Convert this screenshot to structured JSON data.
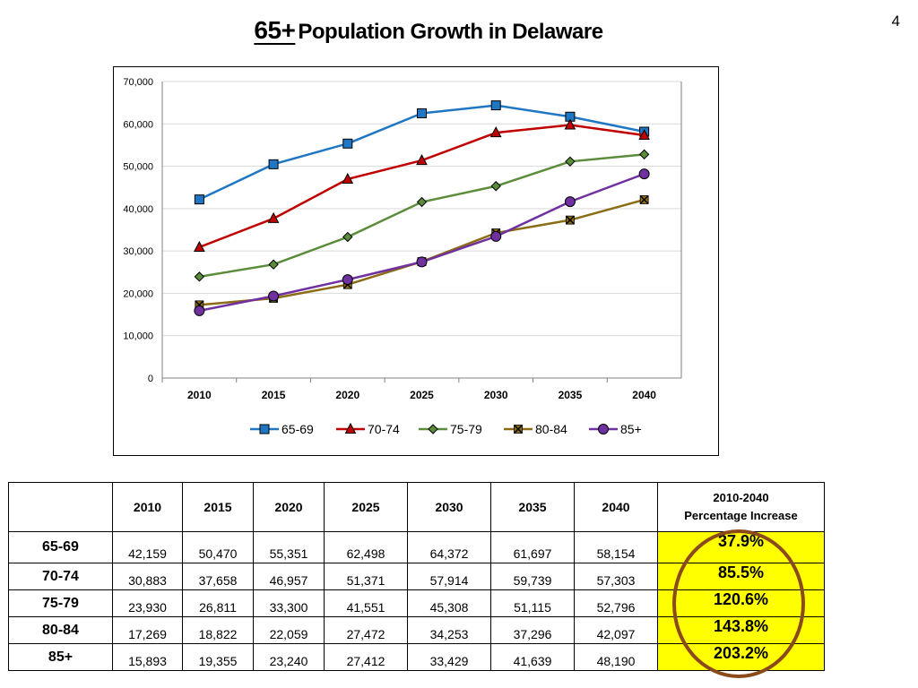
{
  "page_number": "4",
  "title": {
    "accent": "65+",
    "rest": "Population Growth in Delaware"
  },
  "chart_data": {
    "type": "line",
    "title": "",
    "xlabel": "",
    "ylabel": "",
    "x": [
      "2010",
      "2015",
      "2020",
      "2025",
      "2030",
      "2035",
      "2040"
    ],
    "ylim": [
      0,
      70000
    ],
    "y_ticks": [
      0,
      10000,
      20000,
      30000,
      40000,
      50000,
      60000,
      70000
    ],
    "y_tick_labels": [
      "0",
      "10,000",
      "20,000",
      "30,000",
      "40,000",
      "50,000",
      "60,000",
      "70,000"
    ],
    "grid": true,
    "legend_position": "bottom",
    "series": [
      {
        "name": "65-69",
        "color": "#1f77c4",
        "marker": "square",
        "values": [
          42159,
          50470,
          55351,
          62498,
          64372,
          61697,
          58154
        ]
      },
      {
        "name": "70-74",
        "color": "#c00000",
        "marker": "triangle",
        "values": [
          30883,
          37658,
          46957,
          51371,
          57914,
          59739,
          57303
        ]
      },
      {
        "name": "75-79",
        "color": "#5b8c3a",
        "marker": "diamond",
        "values": [
          23930,
          26811,
          33300,
          41551,
          45308,
          51115,
          52796
        ]
      },
      {
        "name": "80-84",
        "color": "#8b6c14",
        "marker": "x-square",
        "values": [
          17269,
          18822,
          22059,
          27472,
          34253,
          37296,
          42097
        ]
      },
      {
        "name": "85+",
        "color": "#7030a0",
        "marker": "circle",
        "values": [
          15893,
          19355,
          23240,
          27412,
          33429,
          41639,
          48190
        ]
      }
    ]
  },
  "table": {
    "years": [
      "2010",
      "2015",
      "2020",
      "2025",
      "2030",
      "2035",
      "2040"
    ],
    "pct_header_line1": "2010-2040",
    "pct_header_line2": "Percentage Increase",
    "rows": [
      {
        "label": "65-69",
        "values": [
          "42,159",
          "50,470",
          "55,351",
          "62,498",
          "64,372",
          "61,697",
          "58,154"
        ],
        "pct": "37.9%"
      },
      {
        "label": "70-74",
        "values": [
          "30,883",
          "37,658",
          "46,957",
          "51,371",
          "57,914",
          "59,739",
          "57,303"
        ],
        "pct": "85.5%"
      },
      {
        "label": "75-79",
        "values": [
          "23,930",
          "26,811",
          "33,300",
          "41,551",
          "45,308",
          "51,115",
          "52,796"
        ],
        "pct": "120.6%"
      },
      {
        "label": "80-84",
        "values": [
          "17,269",
          "18,822",
          "22,059",
          "27,472",
          "34,253",
          "37,296",
          "42,097"
        ],
        "pct": "143.8%"
      },
      {
        "label": "85+",
        "values": [
          "15,893",
          "19,355",
          "23,240",
          "27,412",
          "33,429",
          "41,639",
          "48,190"
        ],
        "pct": "203.2%"
      }
    ]
  }
}
